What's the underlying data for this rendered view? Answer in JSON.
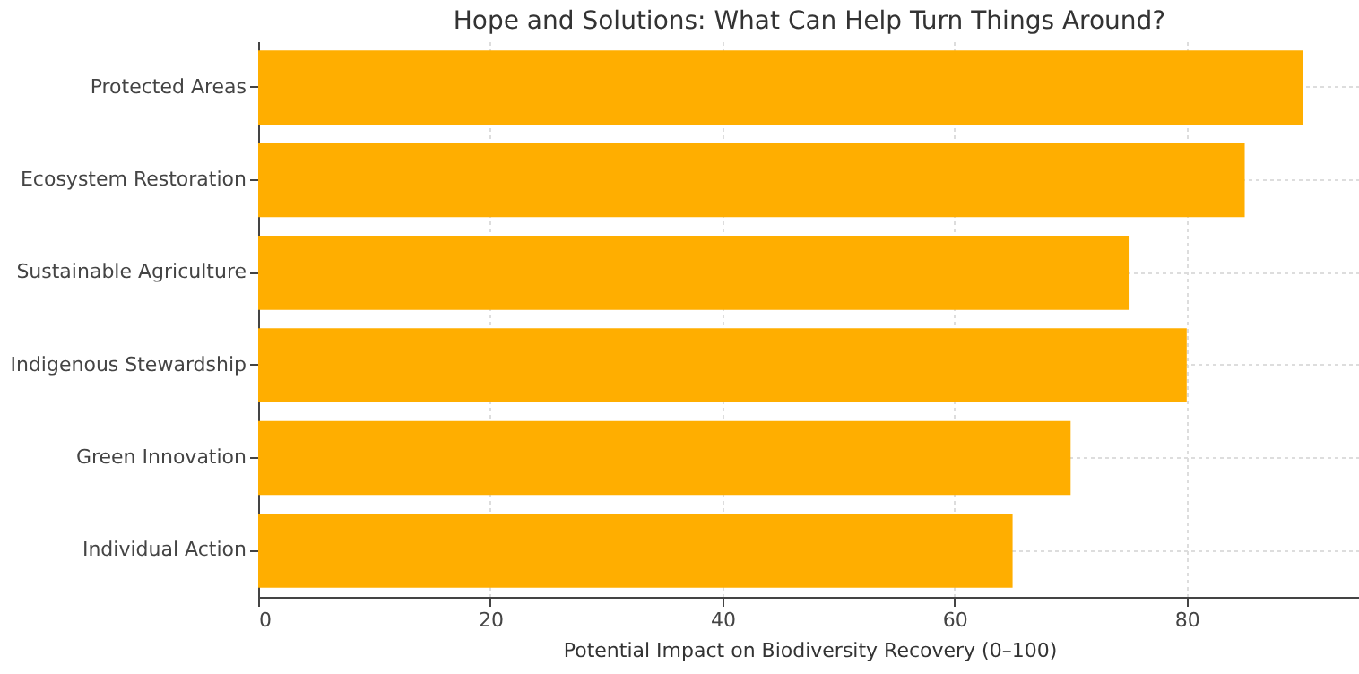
{
  "chart_data": {
    "type": "bar",
    "orientation": "horizontal",
    "title": "Hope and Solutions: What Can Help Turn Things Around?",
    "xlabel": "Potential Impact on Biodiversity Recovery (0–100)",
    "categories": [
      "Protected Areas",
      "Ecosystem Restoration",
      "Sustainable Agriculture",
      "Indigenous Stewardship",
      "Green Innovation",
      "Individual Action"
    ],
    "values": [
      90,
      85,
      75,
      80,
      70,
      65
    ],
    "color": "#ffae00",
    "xlim": [
      0,
      95
    ],
    "xticks": [
      0,
      20,
      40,
      60,
      80
    ],
    "grid": true
  }
}
